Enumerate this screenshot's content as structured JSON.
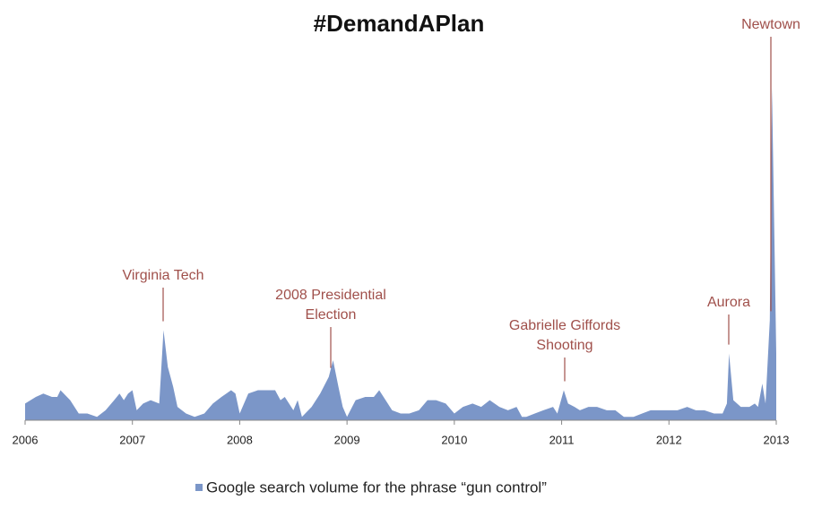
{
  "chart_data": {
    "type": "area",
    "title": "#DemandAPlan",
    "series": [
      {
        "name": "Google search volume for the phrase “gun control”",
        "color": "#7b96c8",
        "values": [
          5,
          7,
          8,
          7,
          7,
          9,
          6,
          2,
          2,
          1,
          3,
          6,
          8,
          6,
          8,
          9,
          3,
          5,
          6,
          5,
          27,
          16,
          10,
          4,
          2,
          1,
          2,
          5,
          7,
          9,
          8,
          2,
          8,
          9,
          9,
          9,
          6,
          7,
          3,
          6,
          1,
          4,
          8,
          13,
          18,
          10,
          4,
          1,
          6,
          7,
          7,
          9,
          5,
          3,
          2,
          2,
          3,
          6,
          6,
          5,
          2,
          4,
          5,
          4,
          6,
          4,
          3,
          4,
          1,
          1,
          2,
          3,
          4,
          2,
          9,
          5,
          4,
          3,
          4,
          4,
          3,
          3,
          1,
          1,
          2,
          3,
          3,
          3,
          3,
          4,
          3,
          3,
          2,
          2,
          5,
          20,
          6,
          4,
          4,
          5,
          4,
          11,
          5,
          30,
          100,
          20
        ]
      }
    ],
    "x": [
      2006.0,
      2006.1,
      2006.17,
      2006.25,
      2006.3,
      2006.33,
      2006.42,
      2006.5,
      2006.58,
      2006.67,
      2006.75,
      2006.83,
      2006.88,
      2006.92,
      2006.96,
      2007.0,
      2007.04,
      2007.1,
      2007.17,
      2007.25,
      2007.29,
      2007.33,
      2007.38,
      2007.42,
      2007.5,
      2007.58,
      2007.67,
      2007.75,
      2007.83,
      2007.92,
      2007.96,
      2008.0,
      2008.08,
      2008.17,
      2008.25,
      2008.33,
      2008.38,
      2008.42,
      2008.5,
      2008.54,
      2008.58,
      2008.67,
      2008.75,
      2008.83,
      2008.87,
      2008.92,
      2008.96,
      2009.0,
      2009.08,
      2009.17,
      2009.25,
      2009.3,
      2009.38,
      2009.42,
      2009.5,
      2009.58,
      2009.67,
      2009.75,
      2009.83,
      2009.92,
      2010.0,
      2010.08,
      2010.17,
      2010.25,
      2010.33,
      2010.42,
      2010.5,
      2010.58,
      2010.63,
      2010.67,
      2010.75,
      2010.83,
      2010.92,
      2010.96,
      2011.02,
      2011.06,
      2011.12,
      2011.17,
      2011.25,
      2011.33,
      2011.42,
      2011.5,
      2011.58,
      2011.67,
      2011.75,
      2011.83,
      2011.92,
      2012.0,
      2012.08,
      2012.17,
      2012.25,
      2012.33,
      2012.42,
      2012.5,
      2012.54,
      2012.56,
      2012.6,
      2012.67,
      2012.75,
      2012.8,
      2012.83,
      2012.87,
      2012.9,
      2012.94,
      2012.96,
      2013.0
    ],
    "xlim": [
      2006,
      2013
    ],
    "xticks": [
      2006,
      2007,
      2008,
      2009,
      2010,
      2011,
      2012,
      2013
    ],
    "ylim": [
      0,
      100
    ],
    "annotations": [
      {
        "lines": [
          "Virginia Tech"
        ]
      },
      {
        "lines": [
          "2008 Presidential",
          "Election"
        ]
      },
      {
        "lines": [
          "Gabrielle Giffords",
          "Shooting"
        ]
      },
      {
        "lines": [
          "Aurora"
        ]
      },
      {
        "lines": [
          "Newtown"
        ]
      }
    ],
    "legend": "bottom"
  }
}
